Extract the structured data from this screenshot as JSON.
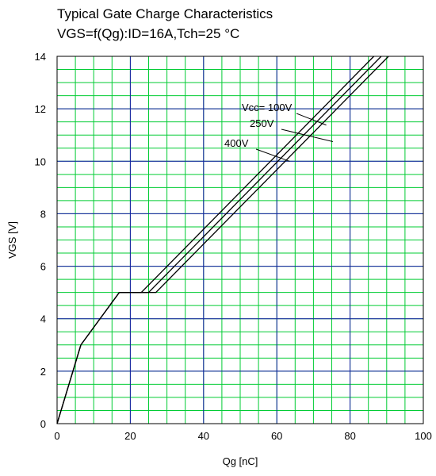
{
  "chart_data": {
    "type": "line",
    "title": "Typical Gate Charge Characteristics",
    "subtitle": "VGS=f(Qg):ID=16A,Tch=25 °C",
    "xlabel": "Qg [nC]",
    "ylabel": "VGS [V]",
    "xlim": [
      0,
      100
    ],
    "ylim": [
      0,
      14
    ],
    "x_ticks": [
      "0",
      "20",
      "40",
      "60",
      "80",
      "100"
    ],
    "y_ticks": [
      "0",
      "2",
      "4",
      "6",
      "8",
      "10",
      "12",
      "14"
    ],
    "grid": true,
    "series": [
      {
        "name": "Vcc= 100V",
        "x": [
          0,
          6.5,
          17,
          23,
          86.5
        ],
        "y": [
          0,
          3,
          5,
          5,
          14
        ]
      },
      {
        "name": "250V",
        "x": [
          0,
          6.5,
          17,
          25,
          88.5
        ],
        "y": [
          0,
          3,
          5,
          5,
          14
        ]
      },
      {
        "name": "400V",
        "x": [
          0,
          6.5,
          17,
          27,
          90.5
        ],
        "y": [
          0,
          3,
          5,
          5,
          14
        ]
      }
    ],
    "annotations": [
      "Vcc= 100V",
      "250V",
      "400V"
    ]
  },
  "colors": {
    "minor_grid": "#00cc33",
    "major_grid": "#1a1aaa",
    "curve": "#000000"
  }
}
